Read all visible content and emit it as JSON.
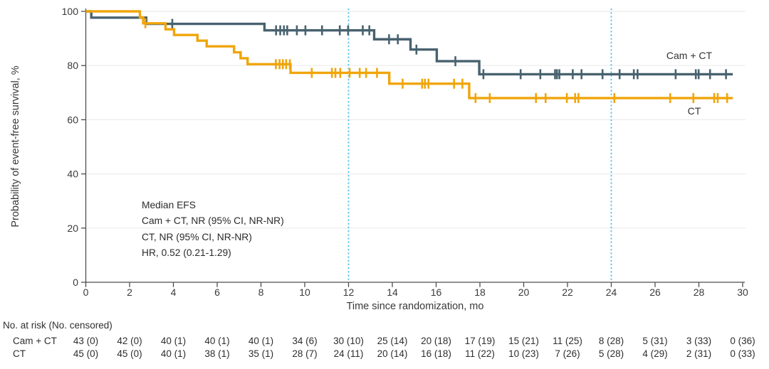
{
  "chart_data": {
    "type": "line",
    "subtype": "kaplan-meier-step",
    "title": "",
    "xlabel": "Time since randomization, mo",
    "ylabel": "Probability of event-free survival, %",
    "xlim": [
      0,
      30
    ],
    "ylim": [
      0,
      100
    ],
    "x_ticks": [
      0,
      2,
      4,
      6,
      8,
      10,
      12,
      14,
      16,
      18,
      20,
      22,
      24,
      26,
      28,
      30
    ],
    "y_ticks": [
      0,
      20,
      40,
      60,
      80,
      100
    ],
    "grid": "horizontal",
    "reference_lines_x": [
      12,
      24
    ],
    "annotation": [
      "Median EFS",
      "Cam + CT, NR (95% CI, NR-NR)",
      "CT, NR (95% CI, NR-NR)",
      "HR, 0.52 (0.21-1.29)"
    ],
    "series": [
      {
        "name": "Cam + CT",
        "color": "#48626f",
        "steps": [
          [
            0,
            100
          ],
          [
            0.25,
            97.7
          ],
          [
            2.76,
            95.4
          ],
          [
            8.16,
            93.0
          ],
          [
            13.17,
            89.7
          ],
          [
            14.83,
            85.9
          ],
          [
            16.03,
            81.6
          ],
          [
            17.97,
            76.8
          ]
        ],
        "end_time": 29.55,
        "censor_times": [
          3.95,
          8.69,
          8.88,
          9.05,
          9.2,
          9.64,
          10.03,
          10.79,
          11.6,
          11.98,
          12.65,
          12.95,
          13.85,
          14.25,
          15.1,
          16.88,
          18.16,
          19.86,
          20.76,
          21.43,
          21.52,
          21.63,
          22.24,
          22.64,
          23.6,
          24.38,
          25.03,
          25.2,
          26.94,
          27.86,
          27.99,
          28.51,
          29.24
        ]
      },
      {
        "name": "CT",
        "color": "#f0a50a",
        "steps": [
          [
            0,
            100
          ],
          [
            2.47,
            97.8
          ],
          [
            2.62,
            95.6
          ],
          [
            3.64,
            93.4
          ],
          [
            4.03,
            91.3
          ],
          [
            5.1,
            89.2
          ],
          [
            5.52,
            87.1
          ],
          [
            6.77,
            84.9
          ],
          [
            7.07,
            82.7
          ],
          [
            7.39,
            80.5
          ],
          [
            9.35,
            77.3
          ],
          [
            13.86,
            73.3
          ],
          [
            17.51,
            68.0
          ]
        ],
        "end_time": 29.55,
        "censor_times": [
          2.72,
          8.68,
          8.85,
          9.0,
          9.15,
          9.32,
          10.32,
          11.24,
          11.4,
          11.62,
          12.05,
          12.51,
          12.8,
          13.3,
          14.47,
          15.36,
          15.49,
          15.65,
          16.82,
          17.2,
          17.8,
          18.45,
          20.56,
          21.0,
          21.97,
          22.35,
          22.5,
          24.14,
          26.69,
          27.75,
          28.7,
          28.86,
          29.29
        ]
      }
    ],
    "colors": {
      "grid": "#ececec",
      "axis": "#4d4d4d",
      "reference_line": "#54c3ea",
      "text": "#3a3a3a"
    }
  },
  "at_risk": {
    "title": "No. at risk (No. censored)",
    "times": [
      0,
      2,
      4,
      6,
      8,
      10,
      12,
      14,
      16,
      18,
      20,
      22,
      24,
      26,
      28,
      30
    ],
    "rows": [
      {
        "label": "Cam + CT",
        "values": [
          "43 (0)",
          "42 (0)",
          "40 (1)",
          "40 (1)",
          "40 (1)",
          "34 (6)",
          "30 (10)",
          "25 (14)",
          "20 (18)",
          "17 (19)",
          "15 (21)",
          "11 (25)",
          "8 (28)",
          "5 (31)",
          "3 (33)",
          "0 (36)"
        ]
      },
      {
        "label": "CT",
        "values": [
          "45 (0)",
          "45 (0)",
          "40 (1)",
          "38 (1)",
          "35 (1)",
          "28 (7)",
          "24 (11)",
          "20 (14)",
          "16 (18)",
          "11 (22)",
          "10 (23)",
          "7 (26)",
          "5 (28)",
          "4 (29)",
          "2 (31)",
          "0 (33)"
        ]
      }
    ]
  }
}
